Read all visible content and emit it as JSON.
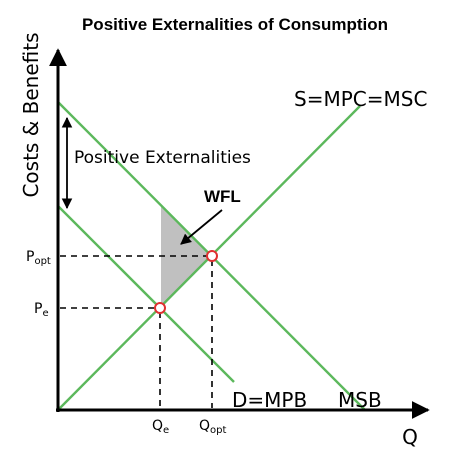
{
  "title": "Positive Externalities of Consumption",
  "axes": {
    "y_label": "Costs & Benefits",
    "x_label": "Q"
  },
  "curves": {
    "supply_label": "S=MPC=MSC",
    "demand_label": "D=MPB",
    "msb_label": "MSB"
  },
  "annotations": {
    "externality_label": "Positive Externalities",
    "welfare_loss_label": "WFL"
  },
  "ticks": {
    "p_opt": {
      "base": "P",
      "sub": "opt"
    },
    "p_e": {
      "base": "P",
      "sub": "e"
    },
    "q_e": {
      "base": "Q",
      "sub": "e"
    },
    "q_opt": {
      "base": "Q",
      "sub": "opt"
    }
  },
  "colors": {
    "curve": "#5cb85c",
    "welfare_loss_fill": "#c0c0c0",
    "equilibrium_marker": "#e03030"
  }
}
